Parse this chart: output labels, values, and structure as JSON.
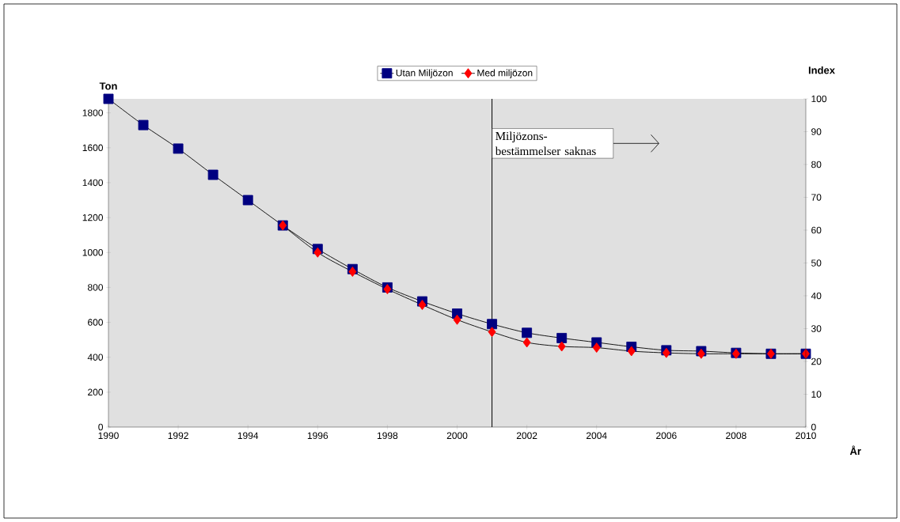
{
  "chart_data": {
    "type": "line",
    "ylabel": "Ton",
    "y2label": "Index",
    "xlabel": "År",
    "x": [
      1990,
      1991,
      1992,
      1993,
      1994,
      1995,
      1996,
      1997,
      1998,
      1999,
      2000,
      2001,
      2002,
      2003,
      2004,
      2005,
      2006,
      2007,
      2008,
      2009,
      2010
    ],
    "series": [
      {
        "name": "Utan Miljözon",
        "color": "#000080",
        "marker": "square",
        "values": [
          1880,
          1730,
          1595,
          1445,
          1300,
          1155,
          1020,
          905,
          800,
          720,
          650,
          590,
          540,
          510,
          485,
          460,
          440,
          435,
          425,
          420,
          420
        ]
      },
      {
        "name": "Med miljözon",
        "color": "#ff0000",
        "marker": "diamond",
        "values": [
          null,
          null,
          null,
          null,
          null,
          1155,
          1000,
          890,
          790,
          700,
          615,
          545,
          485,
          462,
          455,
          435,
          425,
          420,
          420,
          420,
          420
        ]
      }
    ],
    "xlim": [
      1990,
      2010
    ],
    "xticks": [
      1990,
      1992,
      1994,
      1996,
      1998,
      2000,
      2002,
      2004,
      2006,
      2008,
      2010
    ],
    "ylim": [
      0,
      1880
    ],
    "yticks": [
      0,
      200,
      400,
      600,
      800,
      1000,
      1200,
      1400,
      1600,
      1800
    ],
    "y2lim": [
      0,
      100
    ],
    "y2ticks": [
      0,
      10,
      20,
      30,
      40,
      50,
      60,
      70,
      80,
      90,
      100
    ],
    "ref_lines": [
      {
        "axis": "x",
        "value": 2001,
        "label": "Miljözons-bestämmelser saknas"
      }
    ],
    "legend": "top",
    "grid": false
  }
}
